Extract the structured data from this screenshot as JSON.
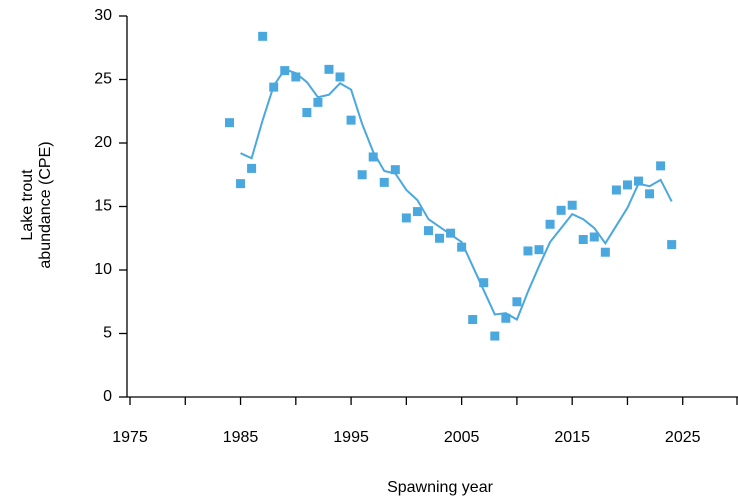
{
  "chart_data": {
    "type": "scatter-trend",
    "xlabel": "Spawning year",
    "ylabel": [
      "Lake trout",
      "abundance  (CPE)"
    ],
    "color": "#4aa8de",
    "xlim": [
      1975,
      2030
    ],
    "xticks": [
      1975,
      1985,
      1995,
      2005,
      2015,
      2025
    ],
    "xminor_ticks": [
      1980,
      1990,
      2000,
      2010,
      2020,
      2030
    ],
    "ylim": [
      0,
      30
    ],
    "yticks": [
      0,
      5,
      10,
      15,
      20,
      25,
      30
    ],
    "points": {
      "x": [
        1984,
        1985,
        1986,
        1987,
        1988,
        1989,
        1990,
        1991,
        1992,
        1993,
        1994,
        1995,
        1996,
        1997,
        1998,
        1999,
        2000,
        2001,
        2002,
        2003,
        2004,
        2005,
        2006,
        2007,
        2008,
        2009,
        2010,
        2011,
        2012,
        2013,
        2014,
        2015,
        2016,
        2017,
        2018,
        2019,
        2020,
        2021,
        2022,
        2023,
        2024
      ],
      "values": [
        21.6,
        16.8,
        18.0,
        28.4,
        24.4,
        25.7,
        25.2,
        22.4,
        23.2,
        25.8,
        25.2,
        21.8,
        17.5,
        18.9,
        16.9,
        17.9,
        14.1,
        14.6,
        13.1,
        12.5,
        12.9,
        11.8,
        6.1,
        9.0,
        4.8,
        6.2,
        7.5,
        11.5,
        11.6,
        13.6,
        14.7,
        15.1,
        12.4,
        12.6,
        11.4,
        16.3,
        16.7,
        17.0,
        16.0,
        18.2,
        12.0
      ]
    },
    "trend": {
      "x": [
        1985,
        1986,
        1987,
        1988,
        1989,
        1990,
        1991,
        1992,
        1993,
        1994,
        1995,
        1996,
        1997,
        1998,
        1999,
        2000,
        2001,
        2002,
        2003,
        2004,
        2005,
        2006,
        2007,
        2008,
        2009,
        2010,
        2011,
        2012,
        2013,
        2014,
        2015,
        2016,
        2017,
        2018,
        2019,
        2020,
        2021,
        2022,
        2023,
        2024
      ],
      "values": [
        19.2,
        18.8,
        21.8,
        24.5,
        25.8,
        25.5,
        24.8,
        23.6,
        23.8,
        24.7,
        24.2,
        21.5,
        19.3,
        17.8,
        17.6,
        16.3,
        15.5,
        14.0,
        13.4,
        12.8,
        12.2,
        10.3,
        8.4,
        6.5,
        6.6,
        6.1,
        8.3,
        10.3,
        12.2,
        13.3,
        14.4,
        14.0,
        13.3,
        12.1,
        13.5,
        14.9,
        16.8,
        16.6,
        17.1,
        15.4
      ]
    }
  }
}
